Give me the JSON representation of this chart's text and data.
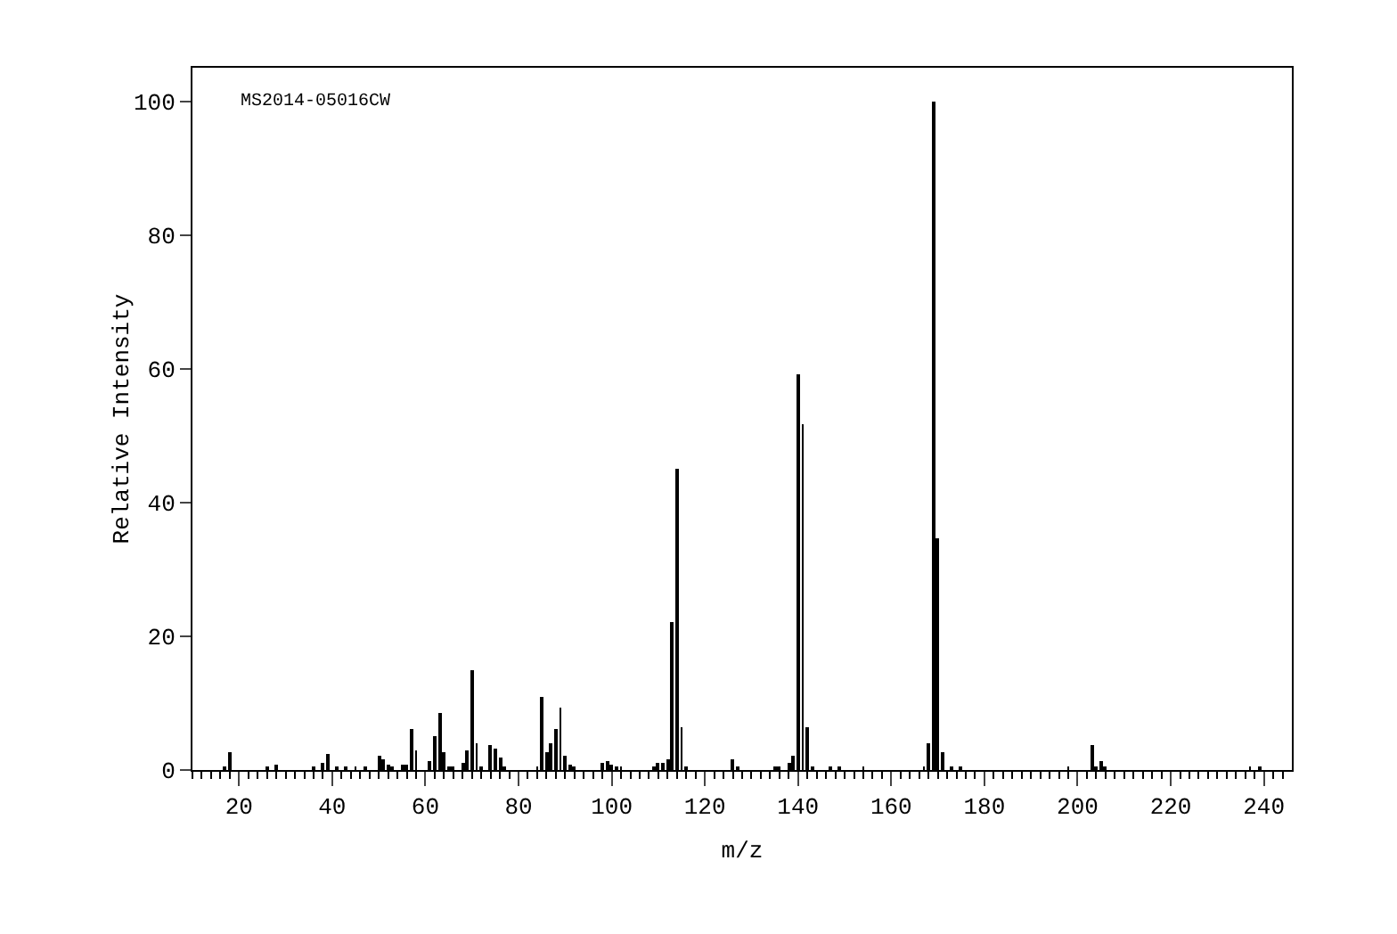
{
  "chart_data": {
    "type": "bar",
    "xlabel": "m/z",
    "ylabel": "Relative Intensity",
    "annotations": [
      "MS2014-05016CW"
    ],
    "x": [
      17,
      18,
      26,
      28,
      36,
      38,
      39,
      41,
      43,
      45,
      47,
      50,
      51,
      52,
      53,
      55,
      56,
      57,
      58,
      61,
      62,
      63,
      64,
      65,
      66,
      68,
      69,
      70,
      71,
      72,
      74,
      75,
      76,
      77,
      84,
      85,
      86,
      87,
      88,
      89,
      90,
      91,
      92,
      98,
      99,
      100,
      101,
      102,
      109,
      110,
      111,
      112,
      113,
      114,
      115,
      116,
      126,
      127,
      135,
      136,
      138,
      139,
      140,
      141,
      142,
      143,
      147,
      149,
      154,
      167,
      168,
      169,
      170,
      171,
      173,
      175,
      198,
      203,
      204,
      205,
      206,
      237,
      239
    ],
    "values": [
      0.5,
      2.7,
      0.4,
      0.8,
      0.4,
      1.1,
      2.3,
      0.5,
      0.6,
      0.4,
      0.3,
      2.2,
      1.6,
      0.7,
      0.4,
      0.7,
      0.8,
      6.1,
      2.9,
      1.4,
      5.0,
      8.5,
      2.6,
      0.6,
      0.5,
      1.1,
      2.9,
      14.9,
      3.9,
      0.5,
      3.7,
      3.2,
      1.9,
      0.5,
      0.6,
      10.9,
      2.7,
      4.0,
      6.1,
      9.3,
      2.2,
      0.8,
      0.3,
      1.0,
      1.4,
      0.8,
      0.6,
      0.5,
      0.6,
      1.1,
      1.1,
      1.6,
      22.1,
      45.1,
      6.4,
      0.5,
      1.6,
      0.5,
      0.4,
      0.4,
      1.1,
      2.1,
      59.2,
      51.7,
      6.4,
      0.4,
      0.4,
      0.4,
      0.4,
      0.4,
      4.0,
      100,
      34.7,
      2.7,
      0.5,
      0.4,
      0.6,
      3.8,
      0.6,
      1.3,
      0.3,
      0.4,
      0.3
    ],
    "color": "#000000",
    "xlim": [
      10,
      246
    ],
    "ylim": [
      0,
      105
    ],
    "xticks": [
      {
        "value": 10,
        "label": null
      },
      {
        "value": 12,
        "label": null
      },
      {
        "value": 14,
        "label": null
      },
      {
        "value": 16,
        "label": null
      },
      {
        "value": 18,
        "label": null
      },
      20,
      {
        "value": 22,
        "label": null
      },
      {
        "value": 24,
        "label": null
      },
      {
        "value": 26,
        "label": null
      },
      {
        "value": 28,
        "label": null
      },
      {
        "value": 30,
        "label": null
      },
      {
        "value": 32,
        "label": null
      },
      {
        "value": 34,
        "label": null
      },
      {
        "value": 36,
        "label": null
      },
      {
        "value": 38,
        "label": null
      },
      40,
      {
        "value": 42,
        "label": null
      },
      {
        "value": 44,
        "label": null
      },
      {
        "value": 46,
        "label": null
      },
      {
        "value": 48,
        "label": null
      },
      {
        "value": 50,
        "label": null
      },
      {
        "value": 52,
        "label": null
      },
      {
        "value": 54,
        "label": null
      },
      {
        "value": 56,
        "label": null
      },
      {
        "value": 58,
        "label": null
      },
      60,
      {
        "value": 62,
        "label": null
      },
      {
        "value": 64,
        "label": null
      },
      {
        "value": 66,
        "label": null
      },
      {
        "value": 68,
        "label": null
      },
      {
        "value": 70,
        "label": null
      },
      {
        "value": 72,
        "label": null
      },
      {
        "value": 74,
        "label": null
      },
      {
        "value": 76,
        "label": null
      },
      {
        "value": 78,
        "label": null
      },
      80,
      {
        "value": 82,
        "label": null
      },
      {
        "value": 84,
        "label": null
      },
      {
        "value": 86,
        "label": null
      },
      {
        "value": 88,
        "label": null
      },
      {
        "value": 90,
        "label": null
      },
      {
        "value": 92,
        "label": null
      },
      {
        "value": 94,
        "label": null
      },
      {
        "value": 96,
        "label": null
      },
      {
        "value": 98,
        "label": null
      },
      100,
      {
        "value": 102,
        "label": null
      },
      {
        "value": 104,
        "label": null
      },
      {
        "value": 106,
        "label": null
      },
      {
        "value": 108,
        "label": null
      },
      {
        "value": 110,
        "label": null
      },
      {
        "value": 112,
        "label": null
      },
      {
        "value": 114,
        "label": null
      },
      {
        "value": 116,
        "label": null
      },
      {
        "value": 118,
        "label": null
      },
      120,
      {
        "value": 122,
        "label": null
      },
      {
        "value": 124,
        "label": null
      },
      {
        "value": 126,
        "label": null
      },
      {
        "value": 128,
        "label": null
      },
      {
        "value": 130,
        "label": null
      },
      {
        "value": 132,
        "label": null
      },
      {
        "value": 134,
        "label": null
      },
      {
        "value": 136,
        "label": null
      },
      {
        "value": 138,
        "label": null
      },
      140,
      {
        "value": 142,
        "label": null
      },
      {
        "value": 144,
        "label": null
      },
      {
        "value": 146,
        "label": null
      },
      {
        "value": 148,
        "label": null
      },
      {
        "value": 150,
        "label": null
      },
      {
        "value": 152,
        "label": null
      },
      {
        "value": 154,
        "label": null
      },
      {
        "value": 156,
        "label": null
      },
      {
        "value": 158,
        "label": null
      },
      160,
      {
        "value": 162,
        "label": null
      },
      {
        "value": 164,
        "label": null
      },
      {
        "value": 166,
        "label": null
      },
      {
        "value": 168,
        "label": null
      },
      {
        "value": 170,
        "label": null
      },
      {
        "value": 172,
        "label": null
      },
      {
        "value": 174,
        "label": null
      },
      {
        "value": 176,
        "label": null
      },
      {
        "value": 178,
        "label": null
      },
      180,
      {
        "value": 182,
        "label": null
      },
      {
        "value": 184,
        "label": null
      },
      {
        "value": 186,
        "label": null
      },
      {
        "value": 188,
        "label": null
      },
      {
        "value": 190,
        "label": null
      },
      {
        "value": 192,
        "label": null
      },
      {
        "value": 194,
        "label": null
      },
      {
        "value": 196,
        "label": null
      },
      {
        "value": 198,
        "label": null
      },
      200,
      {
        "value": 202,
        "label": null
      },
      {
        "value": 204,
        "label": null
      },
      {
        "value": 206,
        "label": null
      },
      {
        "value": 208,
        "label": null
      },
      {
        "value": 210,
        "label": null
      },
      {
        "value": 212,
        "label": null
      },
      {
        "value": 214,
        "label": null
      },
      {
        "value": 216,
        "label": null
      },
      {
        "value": 218,
        "label": null
      },
      220,
      {
        "value": 222,
        "label": null
      },
      {
        "value": 224,
        "label": null
      },
      {
        "value": 226,
        "label": null
      },
      {
        "value": 228,
        "label": null
      },
      {
        "value": 230,
        "label": null
      },
      {
        "value": 232,
        "label": null
      },
      {
        "value": 234,
        "label": null
      },
      {
        "value": 236,
        "label": null
      },
      {
        "value": 238,
        "label": null
      },
      240,
      {
        "value": 242,
        "label": null
      },
      {
        "value": 244,
        "label": null
      }
    ],
    "yticks": [
      0,
      20,
      40,
      60,
      80,
      100
    ],
    "grid": false
  }
}
